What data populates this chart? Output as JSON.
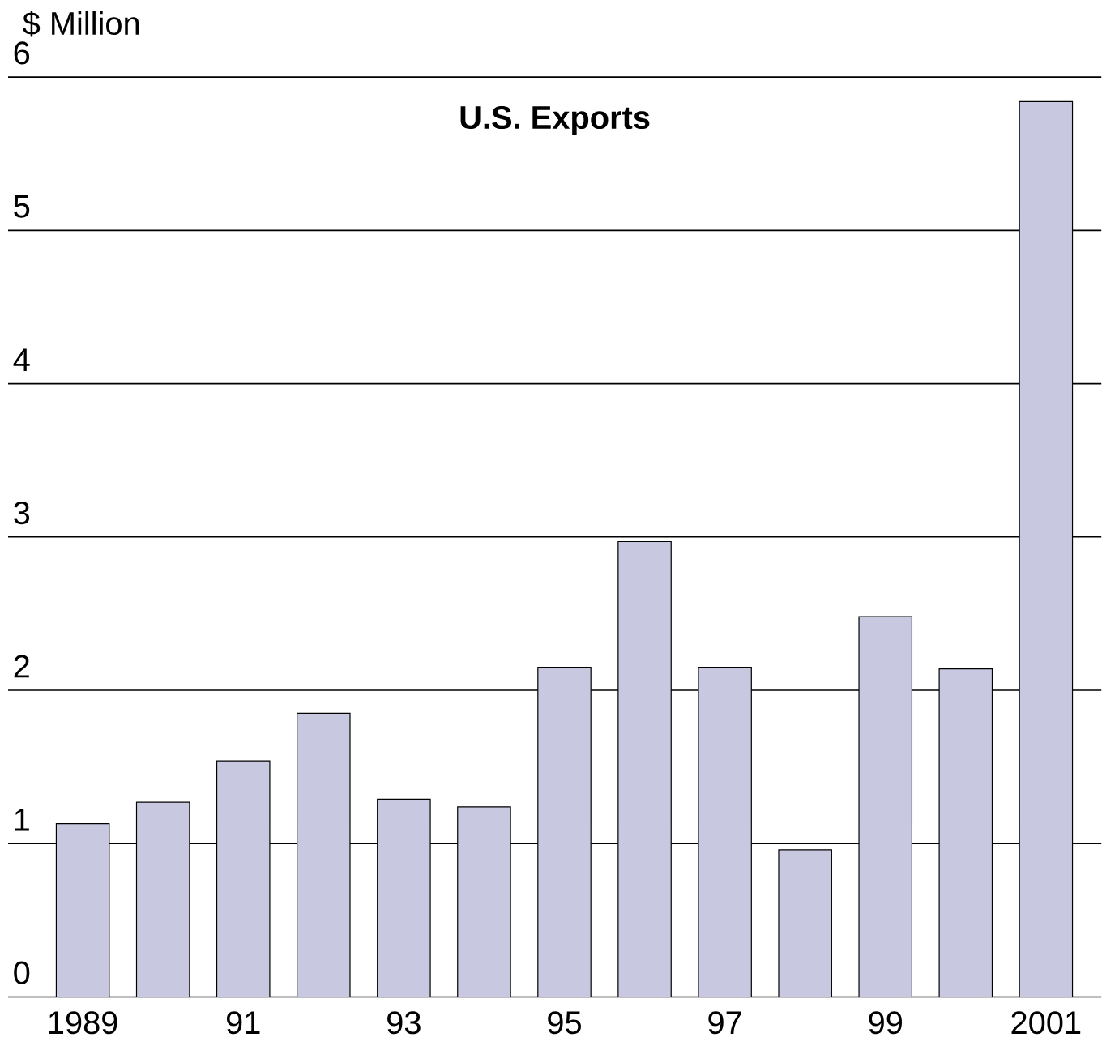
{
  "chart_data": {
    "type": "bar",
    "title": "U.S. Exports",
    "ylabel": "$ Million",
    "categories": [
      "1989",
      null,
      "91",
      null,
      "93",
      null,
      "95",
      null,
      "97",
      null,
      "99",
      null,
      "2001"
    ],
    "values": [
      1.13,
      1.27,
      1.54,
      1.85,
      1.29,
      1.24,
      2.15,
      2.97,
      2.15,
      0.96,
      2.48,
      2.14,
      5.84
    ],
    "color": "#c8c8e0",
    "ylim": [
      0,
      6
    ],
    "yticks": [
      0,
      1,
      2,
      3,
      4,
      5,
      6
    ],
    "grid": "y"
  }
}
